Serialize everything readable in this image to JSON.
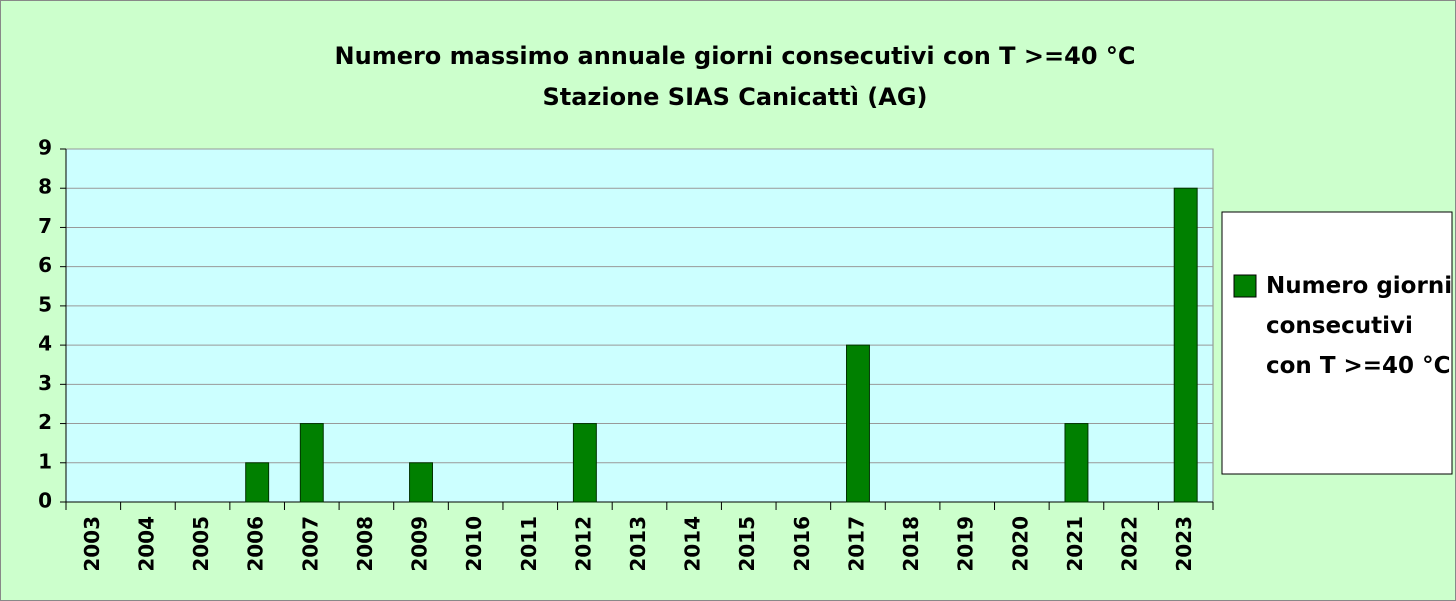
{
  "chart_data": {
    "type": "bar",
    "title": "Numero massimo annuale giorni consecutivi con T >=40 °C",
    "subtitle": "Stazione SIAS Canicattì (AG)",
    "categories": [
      "2003",
      "2004",
      "2005",
      "2006",
      "2007",
      "2008",
      "2009",
      "2010",
      "2011",
      "2012",
      "2013",
      "2014",
      "2015",
      "2016",
      "2017",
      "2018",
      "2019",
      "2020",
      "2021",
      "2022",
      "2023"
    ],
    "series": [
      {
        "name": "Numero giorni consecutivi con T >=40 °C",
        "color": "#008000",
        "values": [
          0,
          0,
          0,
          1,
          2,
          0,
          1,
          0,
          0,
          2,
          0,
          0,
          0,
          0,
          4,
          0,
          0,
          0,
          2,
          0,
          8
        ]
      }
    ],
    "ylim": [
      0,
      9
    ],
    "yticks": [
      0,
      1,
      2,
      3,
      4,
      5,
      6,
      7,
      8,
      9
    ],
    "grid": true,
    "legend": "right"
  }
}
